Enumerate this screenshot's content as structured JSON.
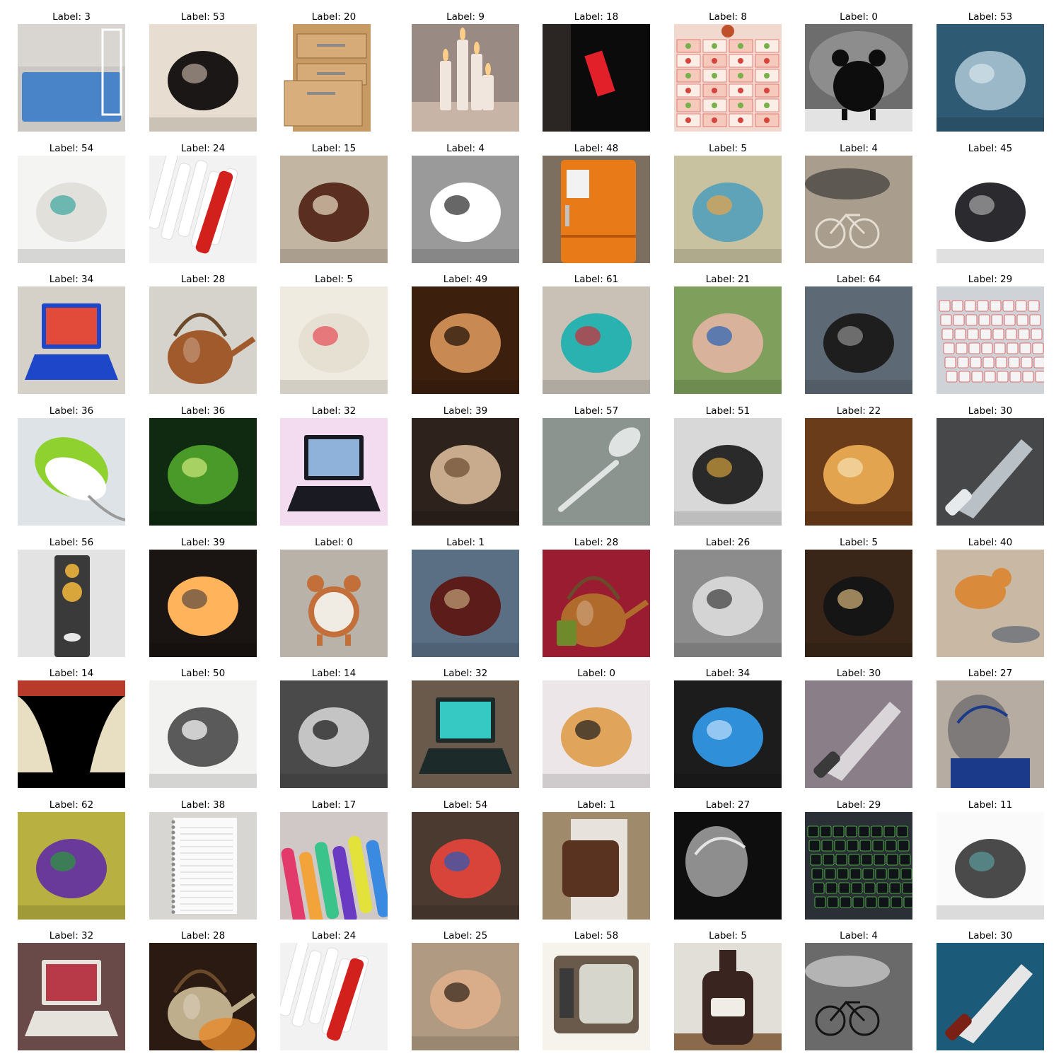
{
  "cells": [
    {
      "label": "Label: 3",
      "subject": "bed",
      "bg": "#e3e1de",
      "fg": "#4a84c8",
      "accent": "#ffffff"
    },
    {
      "label": "Label: 53",
      "subject": "cat-in-sink",
      "bg": "#e7ddd0",
      "fg": "#1b1716",
      "accent": "#b8a89a"
    },
    {
      "label": "Label: 20",
      "subject": "file-cabinet",
      "bg": "#ffffff",
      "fg": "#c89a63",
      "accent": "#8e6a3e"
    },
    {
      "label": "Label: 9",
      "subject": "candles",
      "bg": "#9a8a84",
      "fg": "#f0e6de",
      "accent": "#ffcf8a"
    },
    {
      "label": "Label: 18",
      "subject": "exit-sign",
      "bg": "#0b0b0c",
      "fg": "#e2202a",
      "accent": "#2b2624"
    },
    {
      "label": "Label: 8",
      "subject": "calendar",
      "bg": "#f2d9cf",
      "fg": "#d6443e",
      "accent": "#78b04a"
    },
    {
      "label": "Label: 0",
      "subject": "alarm-clock-silhouette",
      "bg": "#6d6d6d",
      "fg": "#0d0d0d",
      "accent": "#e3e3e3"
    },
    {
      "label": "Label: 53",
      "subject": "faucet",
      "bg": "#2e5a74",
      "fg": "#9bb8c8",
      "accent": "#d7e4ea"
    },
    {
      "label": "Label: 54",
      "subject": "sneakers",
      "bg": "#f4f4f2",
      "fg": "#e2e0db",
      "accent": "#3aa7a0"
    },
    {
      "label": "Label: 24",
      "subject": "forks",
      "bg": "#f2f2f2",
      "fg": "#dcdcdc",
      "accent": "#d2201c"
    },
    {
      "label": "Label: 15",
      "subject": "desk",
      "bg": "#c2b6a2",
      "fg": "#5a2f22",
      "accent": "#e9dcc2"
    },
    {
      "label": "Label: 4",
      "subject": "motorcycle-sketch",
      "bg": "#9a9a9a",
      "fg": "#ffffff",
      "accent": "#262626"
    },
    {
      "label": "Label: 48",
      "subject": "orange-fridge",
      "bg": "#7d6f60",
      "fg": "#e97a18",
      "accent": "#c2c2c2"
    },
    {
      "label": "Label: 5",
      "subject": "glass-jar",
      "bg": "#c9c2a0",
      "fg": "#5fa3b8",
      "accent": "#e7a44a"
    },
    {
      "label": "Label: 4",
      "subject": "bicycle",
      "bg": "#a99d8e",
      "fg": "#2c2a2a",
      "accent": "#e6ddd1"
    },
    {
      "label": "Label: 45",
      "subject": "staplers",
      "bg": "#ffffff",
      "fg": "#2b2b2f",
      "accent": "#a9a9a9"
    },
    {
      "label": "Label: 34",
      "subject": "monitor",
      "bg": "#d6d1c8",
      "fg": "#1d47c8",
      "accent": "#e24a3a"
    },
    {
      "label": "Label: 28",
      "subject": "copper-kettle",
      "bg": "#d6d2cc",
      "fg": "#a05a2c",
      "accent": "#d9c06a"
    },
    {
      "label": "Label: 5",
      "subject": "tiny-jar",
      "bg": "#f0ebe0",
      "fg": "#e6e0d3",
      "accent": "#e54a55"
    },
    {
      "label": "Label: 49",
      "subject": "ruler-closeup",
      "bg": "#3d1f0e",
      "fg": "#c88a52",
      "accent": "#1a0d06"
    },
    {
      "label": "Label: 61",
      "subject": "toothbrush",
      "bg": "#c9c1b6",
      "fg": "#29b2b0",
      "accent": "#d22a34"
    },
    {
      "label": "Label: 21",
      "subject": "flip-flops",
      "bg": "#7ea05c",
      "fg": "#d8b29a",
      "accent": "#2a63b8"
    },
    {
      "label": "Label: 64",
      "subject": "webcam",
      "bg": "#5e6976",
      "fg": "#1e1e1e",
      "accent": "#8e8e8e"
    },
    {
      "label": "Label: 29",
      "subject": "keyboard-keys",
      "bg": "#cfd3d8",
      "fg": "#f4f4f4",
      "accent": "#e24848"
    },
    {
      "label": "Label: 36",
      "subject": "green-mouse",
      "bg": "#dde3e6",
      "fg": "#8fd12e",
      "accent": "#ffffff"
    },
    {
      "label": "Label: 36",
      "subject": "gaming-mouse-art",
      "bg": "#0f2a10",
      "fg": "#4a9a2a",
      "accent": "#cfe87a"
    },
    {
      "label": "Label: 32",
      "subject": "laptop-pink",
      "bg": "#f3dcef",
      "fg": "#1a1a22",
      "accent": "#8fb2da"
    },
    {
      "label": "Label: 39",
      "subject": "cookies",
      "bg": "#2d221c",
      "fg": "#c7ab8c",
      "accent": "#6b4a30"
    },
    {
      "label": "Label: 57",
      "subject": "spoon",
      "bg": "#8b948e",
      "fg": "#dfe3e1",
      "accent": "#ffffff"
    },
    {
      "label": "Label: 51",
      "subject": "screwdriver-ceiling",
      "bg": "#d8d8d8",
      "fg": "#2a2a2a",
      "accent": "#d1a03a"
    },
    {
      "label": "Label: 22",
      "subject": "flower-art",
      "bg": "#6b3c1a",
      "fg": "#e2a44e",
      "accent": "#f6e0b0"
    },
    {
      "label": "Label: 30",
      "subject": "throwing-knives",
      "bg": "#464749",
      "fg": "#b9c0c6",
      "accent": "#e6eaed"
    },
    {
      "label": "Label: 56",
      "subject": "speaker",
      "bg": "#e3e3e3",
      "fg": "#3a3a3a",
      "accent": "#d8a63a"
    },
    {
      "label": "Label: 39",
      "subject": "oven-glow",
      "bg": "#1a1412",
      "fg": "#ffb35a",
      "accent": "#5a4a40"
    },
    {
      "label": "Label: 0",
      "subject": "alarm-clock",
      "bg": "#b8b2a8",
      "fg": "#c26f3a",
      "accent": "#f1ece3"
    },
    {
      "label": "Label: 1",
      "subject": "luggage",
      "bg": "#5a6f84",
      "fg": "#5b1c1a",
      "accent": "#c3a27a"
    },
    {
      "label": "Label: 28",
      "subject": "kettle-red",
      "bg": "#9a1c30",
      "fg": "#b06a2c",
      "accent": "#6f8a2a"
    },
    {
      "label": "Label: 26",
      "subject": "hammer",
      "bg": "#8c8c8c",
      "fg": "#d4d4d4",
      "accent": "#3a3a3a"
    },
    {
      "label": "Label: 5",
      "subject": "bottles",
      "bg": "#3a2618",
      "fg": "#151515",
      "accent": "#d4b27a"
    },
    {
      "label": "Label: 40",
      "subject": "orange-cat",
      "bg": "#c8b8a4",
      "fg": "#d98a3a",
      "accent": "#7c7e82"
    },
    {
      "label": "Label: 14",
      "subject": "stage-curtains",
      "bg": "#000000",
      "fg": "#e8dfc2",
      "accent": "#b83a2a"
    },
    {
      "label": "Label: 50",
      "subject": "scissors-sketch",
      "bg": "#f2f2f0",
      "fg": "#5a5a5a",
      "accent": "#ffffff"
    },
    {
      "label": "Label: 14",
      "subject": "window-curtain",
      "bg": "#4a4a4a",
      "fg": "#c4c4c4",
      "accent": "#141414"
    },
    {
      "label": "Label: 32",
      "subject": "laptop-screen",
      "bg": "#6a5a4c",
      "fg": "#1c2a2a",
      "accent": "#36c9c3"
    },
    {
      "label": "Label: 0",
      "subject": "clock-cake",
      "bg": "#ece6e8",
      "fg": "#e0a45a",
      "accent": "#1c1c1c"
    },
    {
      "label": "Label: 34",
      "subject": "cartoon-computer",
      "bg": "#1c1c1c",
      "fg": "#2f8fd8",
      "accent": "#bfe0ff"
    },
    {
      "label": "Label: 30",
      "subject": "pocket-knives",
      "bg": "#8a7e88",
      "fg": "#d9d5d8",
      "accent": "#3a3a3a"
    },
    {
      "label": "Label: 27",
      "subject": "helmets-blue",
      "bg": "#b6aca2",
      "fg": "#7e7a7a",
      "accent": "#1c3a8a"
    },
    {
      "label": "Label: 62",
      "subject": "plant-toy",
      "bg": "#b8b040",
      "fg": "#6a3a9a",
      "accent": "#2a9a3a"
    },
    {
      "label": "Label: 38",
      "subject": "notebook",
      "bg": "#d8d6d2",
      "fg": "#fafafa",
      "accent": "#8a8a8a"
    },
    {
      "label": "Label: 17",
      "subject": "markers",
      "bg": "#d0c8c6",
      "fg": "#e23a6a",
      "accent": "#3ac38a"
    },
    {
      "label": "Label: 54",
      "subject": "sonic-shoes",
      "bg": "#4a3a30",
      "fg": "#d8443a",
      "accent": "#2a5ab8"
    },
    {
      "label": "Label: 1",
      "subject": "backpack",
      "bg": "#a08a6c",
      "fg": "#5a3320",
      "accent": "#e8e2dc"
    },
    {
      "label": "Label: 27",
      "subject": "helmet-dark",
      "bg": "#0e0e0e",
      "fg": "#8e8e8e",
      "accent": "#e4e4e4"
    },
    {
      "label": "Label: 29",
      "subject": "dark-keyboard",
      "bg": "#2a3036",
      "fg": "#101418",
      "accent": "#5ad14a"
    },
    {
      "label": "Label: 11",
      "subject": "tape-sketch",
      "bg": "#fafafa",
      "fg": "#4a4a4a",
      "accent": "#5a9a9a"
    },
    {
      "label": "Label: 32",
      "subject": "retro-laptop",
      "bg": "#6a4a48",
      "fg": "#e6e2dc",
      "accent": "#b83a48"
    },
    {
      "label": "Label: 28",
      "subject": "kettle-fire",
      "bg": "#2a1a12",
      "fg": "#bfae8c",
      "accent": "#e88a2a"
    },
    {
      "label": "Label: 24",
      "subject": "forks-2",
      "bg": "#f2f2f2",
      "fg": "#dcdcdc",
      "accent": "#d2201c"
    },
    {
      "label": "Label: 25",
      "subject": "glasses-man",
      "bg": "#b09a82",
      "fg": "#d9ad8a",
      "accent": "#2a1c14"
    },
    {
      "label": "Label: 58",
      "subject": "tv",
      "bg": "#f6f2ec",
      "fg": "#6a5a4c",
      "accent": "#d6d6cc"
    },
    {
      "label": "Label: 5",
      "subject": "brown-bottle",
      "bg": "#e2ded8",
      "fg": "#3a2420",
      "accent": "#f0ece6"
    },
    {
      "label": "Label: 4",
      "subject": "bike-clouds",
      "bg": "#6a6a6a",
      "fg": "#e6e6e6",
      "accent": "#121212"
    },
    {
      "label": "Label: 30",
      "subject": "kitchen-knife",
      "bg": "#1c5a7a",
      "fg": "#e6e6e6",
      "accent": "#7a2014"
    }
  ]
}
